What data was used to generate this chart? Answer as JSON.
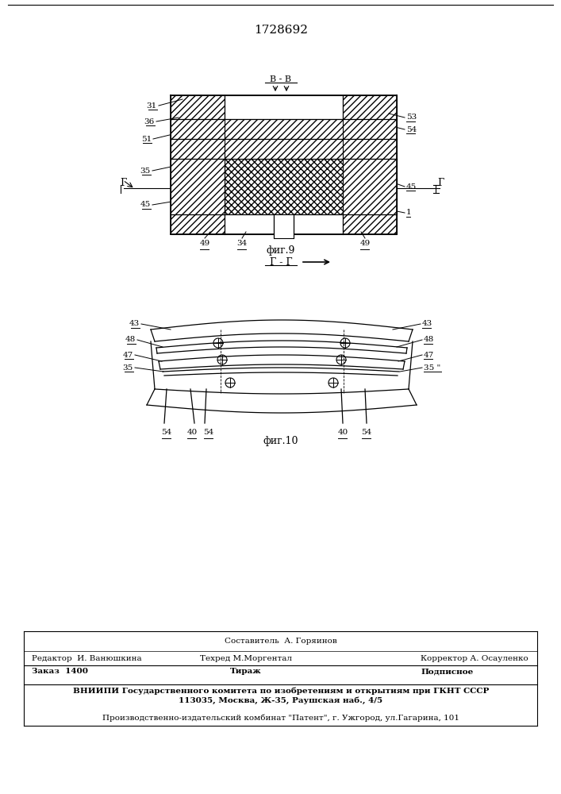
{
  "patent_number": "1728692",
  "bg_color": "#ffffff",
  "fig9_label": "фиг.9",
  "fig10_label": "фиг.10",
  "section_bb": "В - В",
  "section_gg": "Г - Г",
  "footer_line1_left": "Редактор  И. Ванюшкина",
  "footer_line1_mid": "Составитель  А. Горяинов",
  "footer_line2_left": "Редактор  И. Ванюшкина",
  "footer_line2_mid": "Техред М.Моргентал",
  "footer_line2_right": "Корректор А. Осауленко",
  "footer_line3_left": "Заказ  1400",
  "footer_line3_mid": "Тираж",
  "footer_line3_right": "Подписное",
  "footer_line4": "ВНИИПИ Государственного комитета по изобретениям и открытиям при ГКНТ СССР",
  "footer_line5": "113035, Москва, Ж-35, Раушская наб., 4/5",
  "footer_line6": "Производственно-издательский комбинат \"Патент\", г. Ужгород, ул.Гагарина, 101"
}
